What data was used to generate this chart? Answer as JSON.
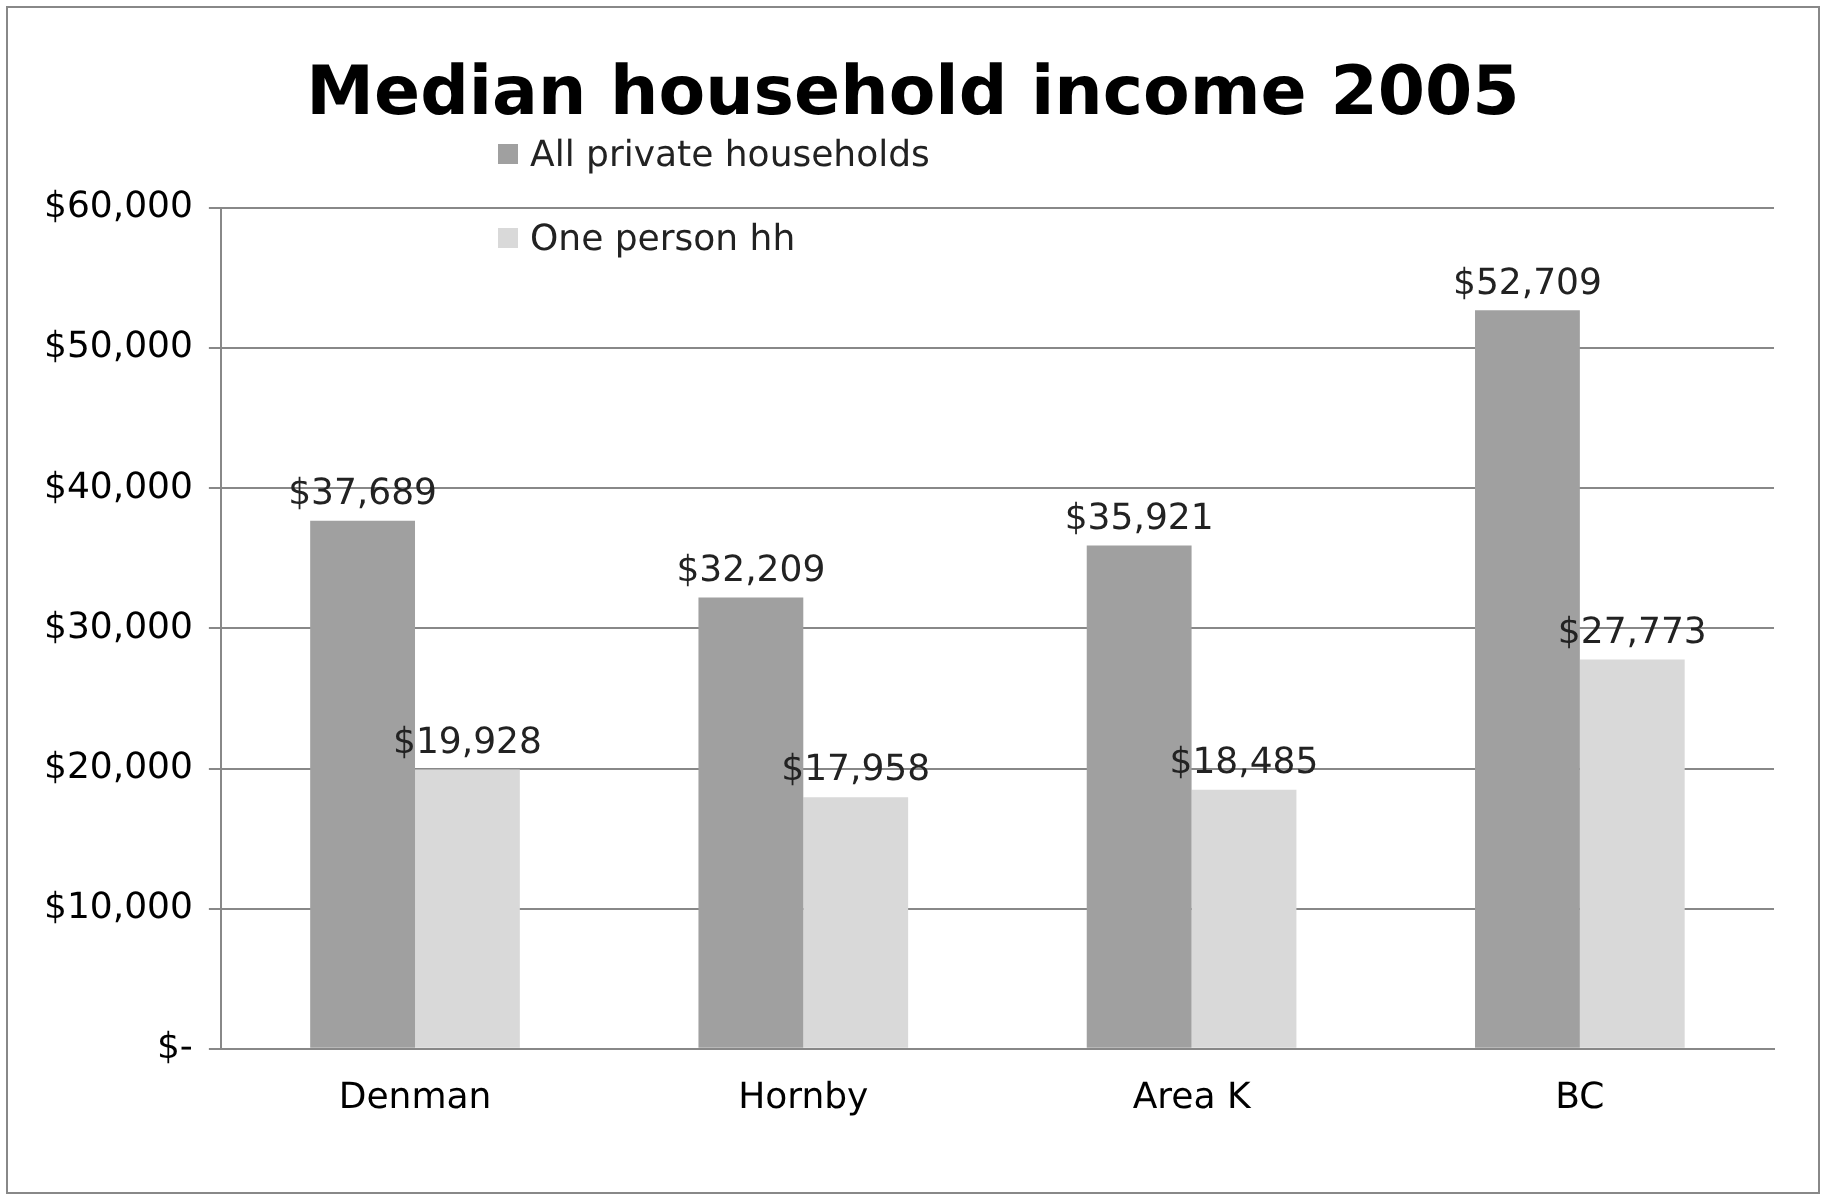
{
  "chart_data": {
    "type": "bar",
    "title": "Median household income 2005",
    "categories": [
      "Denman",
      "Hornby",
      "Area K",
      "BC"
    ],
    "series": [
      {
        "name": "All private households",
        "color": "#a0a0a0",
        "values": [
          37689,
          32209,
          35921,
          52709
        ],
        "value_labels": [
          "$37,689",
          "$32,209",
          "$35,921",
          "$52,709"
        ]
      },
      {
        "name": "One person hh",
        "color": "#d9d9d9",
        "values": [
          19928,
          17958,
          18485,
          27773
        ],
        "value_labels": [
          "$19,928",
          "$17,958",
          "$18,485",
          "$27,773"
        ]
      }
    ],
    "ylim": [
      0,
      60000
    ],
    "yticks": [
      {
        "value": 0,
        "label": "$-"
      },
      {
        "value": 10000,
        "label": "$10,000"
      },
      {
        "value": 20000,
        "label": "$20,000"
      },
      {
        "value": 30000,
        "label": "$30,000"
      },
      {
        "value": 40000,
        "label": "$40,000"
      },
      {
        "value": 50000,
        "label": "$50,000"
      },
      {
        "value": 60000,
        "label": "$60,000"
      }
    ],
    "grid": "y",
    "legend": "top left"
  }
}
